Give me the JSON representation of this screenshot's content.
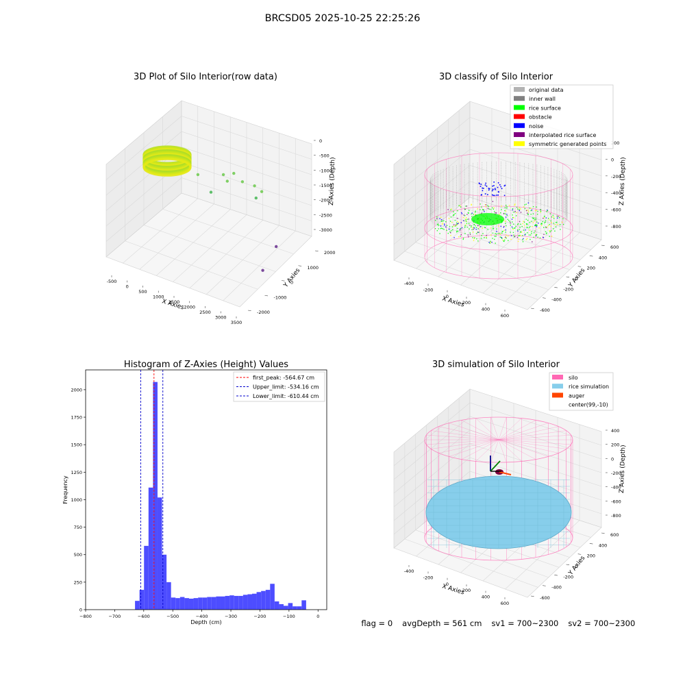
{
  "figure_title": "BRCSD05 2025-10-25 22:25:26",
  "status": {
    "flag": "flag = 0",
    "avg_depth": "avgDepth = 561 cm",
    "sv1": "sv1 = 700~2300",
    "sv2": "sv2 = 700~2300"
  },
  "colors": {
    "histogram_bar": "#4d4dff",
    "first_peak_line": "#ff0000",
    "limit_line": "#0000cc",
    "original_data": "#b3b3b3",
    "inner_wall": "#808080",
    "rice_surface": "#00ff00",
    "obstacle": "#ff0000",
    "noise": "#0000ff",
    "interpolated_rice_surface": "#800080",
    "symmetric_generated_points": "#ffff00",
    "silo": "#ff69b4",
    "rice_simulation": "#87ceeb",
    "auger": "#ff4500"
  },
  "chart_data": [
    {
      "type": "scatter",
      "title": "3D Plot of Silo Interior(row data)",
      "xlabel": "X Axies",
      "ylabel": "Y Axies",
      "zlabel": "Z Axies (Depth)",
      "x_ticks": [
        "-500",
        "0",
        "500",
        "1000",
        "1500",
        "2000",
        "2500",
        "3000",
        "3500"
      ],
      "y_ticks": [
        "-2000",
        "-1000",
        "0",
        "1000",
        "2000"
      ],
      "z_ticks": [
        "0",
        "-500",
        "-1000",
        "-1500",
        "-2000",
        "-2500",
        "-3000"
      ],
      "xlim": [
        -600,
        3600
      ],
      "ylim": [
        -2200,
        2200
      ],
      "zlim": [
        -3300,
        100
      ],
      "points": [
        {
          "x": 1200,
          "y": 1300,
          "z": -1350
        },
        {
          "x": 1350,
          "y": 1250,
          "z": -1500
        },
        {
          "x": 1500,
          "y": 1350,
          "z": -1200
        },
        {
          "x": 1800,
          "y": 1300,
          "z": -1350
        },
        {
          "x": 2100,
          "y": 1450,
          "z": -1450
        },
        {
          "x": 2300,
          "y": 1500,
          "z": -1600
        },
        {
          "x": 2200,
          "y": 1350,
          "z": -1800
        },
        {
          "x": 1000,
          "y": 950,
          "z": -1900
        },
        {
          "x": 400,
          "y": 1300,
          "z": -1700
        },
        {
          "x": 3400,
          "y": 300,
          "z": -2500
        },
        {
          "x": 3300,
          "y": -300,
          "z": -3100
        }
      ]
    },
    {
      "type": "scatter",
      "title": "3D classify of Silo Interior",
      "xlabel": "X Axies",
      "ylabel": "Y Axies",
      "zlabel": "Z Axies (Depth)",
      "x_ticks": [
        "-400",
        "-200",
        "0",
        "200",
        "400",
        "600"
      ],
      "y_ticks": [
        "-600",
        "-400",
        "-200",
        "0",
        "200",
        "400",
        "600"
      ],
      "z_ticks": [
        "200",
        "0",
        "-200",
        "-400",
        "-600",
        "-800"
      ],
      "legend": [
        "original data",
        "inner wall",
        "rice surface",
        "obstacle",
        "noise",
        "interpolated rice surface",
        "symmetric generated points"
      ],
      "legend_position": "top-right"
    },
    {
      "type": "bar",
      "title": "Histogram of Z-Axies (Height) Values",
      "xlabel": "Depth (cm)",
      "ylabel": "Frequency",
      "xlim": [
        -800,
        30
      ],
      "ylim": [
        0,
        2180
      ],
      "x_ticks": [
        -800,
        -700,
        -600,
        -500,
        -400,
        -300,
        -200,
        -100,
        0
      ],
      "y_ticks": [
        0,
        250,
        500,
        750,
        1000,
        1250,
        1500,
        1750,
        2000
      ],
      "bin_start": -630,
      "bin_width": 15.5,
      "values": [
        80,
        180,
        580,
        1110,
        2070,
        1020,
        500,
        250,
        110,
        105,
        115,
        105,
        100,
        105,
        110,
        110,
        115,
        115,
        120,
        120,
        125,
        130,
        125,
        125,
        135,
        140,
        145,
        160,
        170,
        180,
        235,
        75,
        50,
        35,
        60,
        30,
        30,
        85
      ],
      "lines": [
        {
          "label": "first_peak: -564.67 cm",
          "x": -564.67,
          "color": "#ff0000"
        },
        {
          "label": "Upper_limit: -534.16 cm",
          "x": -534.16,
          "color": "#0000cc"
        },
        {
          "label": "Lower_limit: -610.44 cm",
          "x": -610.44,
          "color": "#0000cc"
        }
      ],
      "legend_position": "top-right"
    },
    {
      "type": "scatter",
      "title": "3D simulation of Silo Interior",
      "xlabel": "X Axies",
      "ylabel": "Y Axies",
      "zlabel": "Z Axies (Depth)",
      "x_ticks": [
        "-400",
        "-200",
        "0",
        "200",
        "400",
        "600"
      ],
      "y_ticks": [
        "-600",
        "-400",
        "-200",
        "0",
        "200",
        "400",
        "600"
      ],
      "z_ticks": [
        "400",
        "200",
        "0",
        "-200",
        "-400",
        "-600",
        "-800"
      ],
      "legend": [
        "silo",
        "rice simulation",
        "auger",
        "center(99,-10)"
      ],
      "legend_position": "top-right"
    }
  ]
}
